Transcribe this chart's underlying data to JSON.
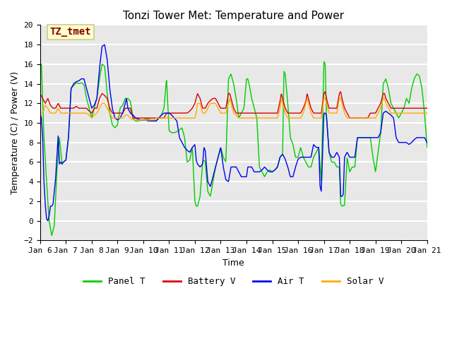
{
  "title": "Tonzi Tower Met: Temperature and Power",
  "xlabel": "Time",
  "ylabel": "Temperature (C) / Power (V)",
  "ylim": [
    -2,
    20
  ],
  "yticks": [
    -2,
    0,
    2,
    4,
    6,
    8,
    10,
    12,
    14,
    16,
    18,
    20
  ],
  "x_labels": [
    "Jan 6",
    "Jan 7",
    "Jan 8",
    "Jan 9",
    "Jan 10",
    "Jan 11",
    "Jan 12",
    "Jan 13",
    "Jan 14",
    "Jan 15",
    "Jan 16",
    "Jan 17",
    "Jan 18",
    "Jan 19",
    "Jan 20",
    "Jan 21"
  ],
  "annotation_text": "TZ_tmet",
  "annotation_bg": "#ffffcc",
  "annotation_border": "#cccc88",
  "annotation_fg": "#880000",
  "colors": {
    "panel_t": "#00cc00",
    "battery_v": "#dd0000",
    "air_t": "#0000ee",
    "solar_v": "#ffaa00"
  },
  "legend_labels": [
    "Panel T",
    "Battery V",
    "Air T",
    "Solar V"
  ],
  "bg_color": "#e8e8e8",
  "grid_color": "#ffffff",
  "linewidth": 1.0,
  "title_fontsize": 11,
  "axis_fontsize": 9,
  "tick_fontsize": 8
}
